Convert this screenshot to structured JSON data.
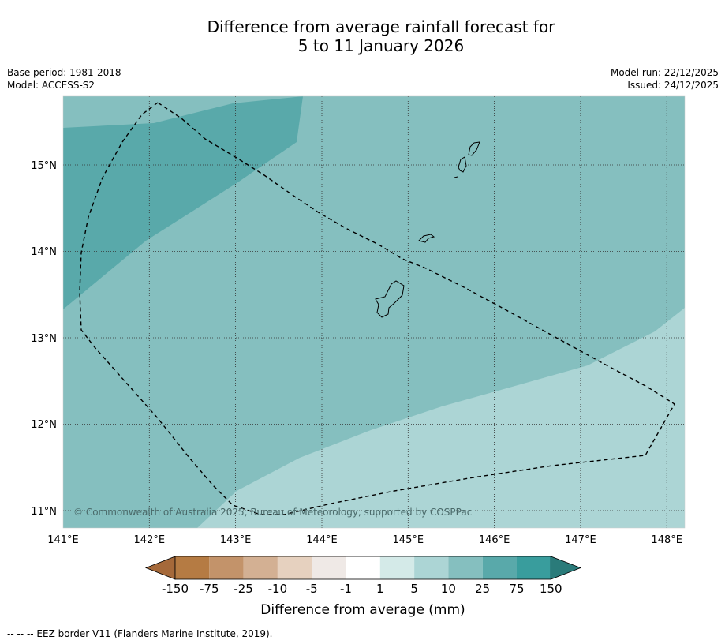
{
  "title_line1": "Difference from average rainfall forecast for",
  "title_line2": "5 to 11 January 2026",
  "base_period": "Base period: 1981-2018",
  "model": "Model: ACCESS-S2",
  "model_run": "Model run: 22/12/2025",
  "issued": "Issued: 24/12/2025",
  "copyright": "© Commonwealth of Australia 2025, Bureau of Meteorology, supported by COSPPac",
  "lon_ticks": [
    "141°E",
    "142°E",
    "143°E",
    "144°E",
    "145°E",
    "146°E",
    "147°E",
    "148°E"
  ],
  "lat_ticks": [
    "15°N",
    "14°N",
    "13°N",
    "12°N",
    "11°N"
  ],
  "colorbar": {
    "title": "Difference from average (mm)",
    "labels": [
      "-150",
      "-75",
      "-25",
      "-10",
      "-5",
      "-1",
      "1",
      "5",
      "10",
      "25",
      "75",
      "150"
    ],
    "colors": [
      "#a5693a",
      "#b57b43",
      "#c3936a",
      "#d3b093",
      "#e6d1bf",
      "#efe9e6",
      "#ffffff",
      "#d4eae8",
      "#acd5d5",
      "#85bfbf",
      "#59a9aa",
      "#399d9d",
      "#2a7b7a"
    ]
  },
  "map_colors": {
    "band_10_25": "#85bfbf",
    "band_25_75": "#59a9aa",
    "band_5_10": "#acd5d5"
  },
  "footer": "--  --  -- EEZ border V11 (Flanders Marine Institute, 2019)."
}
